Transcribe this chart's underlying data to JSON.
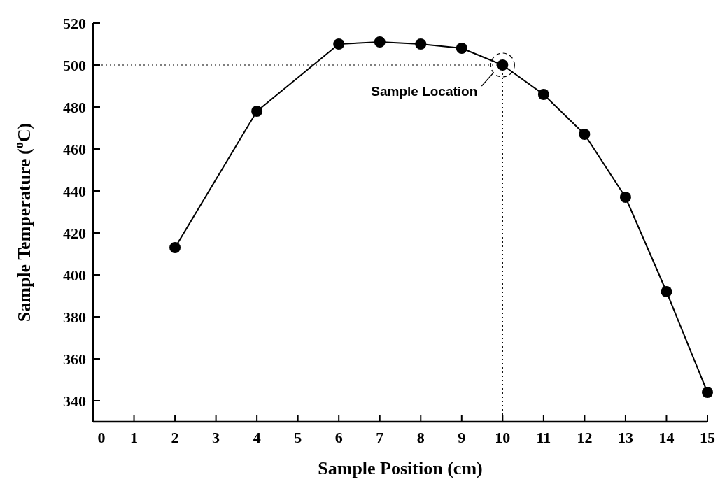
{
  "chart_data": {
    "type": "line",
    "xlabel": "Sample Position (cm)",
    "ylabel": "Sample Temperature ($^{o}$C)",
    "x": [
      2,
      4,
      6,
      7,
      8,
      9,
      10,
      11,
      12,
      13,
      14,
      15
    ],
    "series": [
      {
        "color": "#000000",
        "values": [
          413,
          478,
          510,
          511,
          510,
          508,
          500,
          486,
          467,
          437,
          392,
          344
        ]
      }
    ],
    "xlim": [
      0,
      15
    ],
    "xticks": [
      0,
      1,
      2,
      3,
      4,
      5,
      6,
      7,
      8,
      9,
      10,
      11,
      12,
      13,
      14,
      15
    ],
    "ylim": [
      330,
      520
    ],
    "yticks": [
      340,
      360,
      380,
      400,
      420,
      440,
      460,
      480,
      500,
      520
    ],
    "marker": "circle",
    "line_style": "solid",
    "grid": false,
    "ref_lines": [
      {
        "axis": "y",
        "value": 500,
        "line_style": "dotted"
      },
      {
        "axis": "x",
        "value": 10,
        "line_style": "dotted"
      }
    ],
    "annotations": [
      {
        "text": "Sample Location",
        "x": 10,
        "y": 500
      }
    ]
  }
}
